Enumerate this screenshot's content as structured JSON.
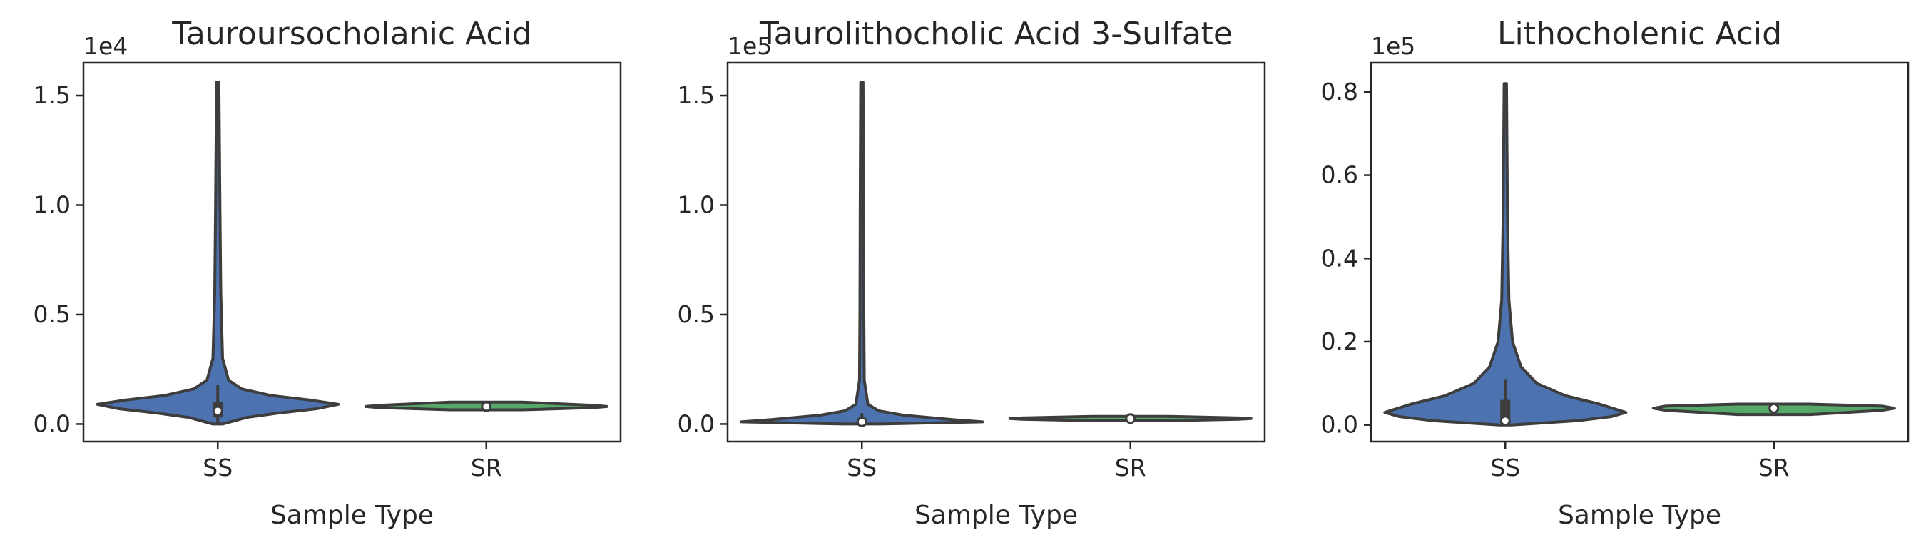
{
  "chart_data": [
    {
      "type": "violin",
      "title": "Tauroursocholanic Acid",
      "xlabel": "Sample Type",
      "ylabel": "",
      "categories": [
        "SS",
        "SR"
      ],
      "offset_label": "1e4",
      "ylim": [
        -0.08,
        1.65
      ],
      "yticks": [
        0.0,
        0.5,
        1.0,
        1.5
      ],
      "ytick_labels": [
        "0.0",
        "0.5",
        "1.0",
        "1.5"
      ],
      "violins": [
        {
          "category": "SS",
          "color": "#4c72b0",
          "median": 0.06,
          "q1": 0.03,
          "q3": 0.1,
          "whisker_low": 0.0,
          "whisker_high": 0.18,
          "profile": [
            [
              0.0,
              0.04
            ],
            [
              0.03,
              0.24
            ],
            [
              0.05,
              0.5
            ],
            [
              0.07,
              0.82
            ],
            [
              0.09,
              1.0
            ],
            [
              0.11,
              0.76
            ],
            [
              0.13,
              0.44
            ],
            [
              0.16,
              0.2
            ],
            [
              0.2,
              0.09
            ],
            [
              0.3,
              0.04
            ],
            [
              0.6,
              0.025
            ],
            [
              1.0,
              0.018
            ],
            [
              1.56,
              0.01
            ]
          ]
        },
        {
          "category": "SR",
          "color": "#55a868",
          "median": 0.08,
          "q1": 0.07,
          "q3": 0.09,
          "whisker_low": 0.065,
          "whisker_high": 0.1,
          "profile": [
            [
              0.065,
              0.3
            ],
            [
              0.075,
              0.9
            ],
            [
              0.08,
              1.0
            ],
            [
              0.085,
              0.9
            ],
            [
              0.1,
              0.3
            ]
          ]
        }
      ]
    },
    {
      "type": "violin",
      "title": "Taurolithocholic Acid 3-Sulfate",
      "xlabel": "Sample Type",
      "ylabel": "",
      "categories": [
        "SS",
        "SR"
      ],
      "offset_label": "1e5",
      "ylim": [
        -0.08,
        1.65
      ],
      "yticks": [
        0.0,
        0.5,
        1.0,
        1.5
      ],
      "ytick_labels": [
        "0.0",
        "0.5",
        "1.0",
        "1.5"
      ],
      "violins": [
        {
          "category": "SS",
          "color": "#4c72b0",
          "median": 0.01,
          "q1": 0.005,
          "q3": 0.02,
          "whisker_low": 0.0,
          "whisker_high": 0.05,
          "profile": [
            [
              0.0,
              0.15
            ],
            [
              0.01,
              1.0
            ],
            [
              0.02,
              0.75
            ],
            [
              0.04,
              0.35
            ],
            [
              0.06,
              0.14
            ],
            [
              0.09,
              0.05
            ],
            [
              0.2,
              0.02
            ],
            [
              0.5,
              0.016
            ],
            [
              1.0,
              0.014
            ],
            [
              1.56,
              0.01
            ]
          ]
        },
        {
          "category": "SR",
          "color": "#55a868",
          "median": 0.025,
          "q1": 0.02,
          "q3": 0.03,
          "whisker_low": 0.015,
          "whisker_high": 0.035,
          "profile": [
            [
              0.015,
              0.3
            ],
            [
              0.022,
              0.9
            ],
            [
              0.025,
              1.0
            ],
            [
              0.028,
              0.9
            ],
            [
              0.035,
              0.3
            ]
          ]
        }
      ]
    },
    {
      "type": "violin",
      "title": "Lithocholenic Acid",
      "xlabel": "Sample Type",
      "ylabel": "",
      "categories": [
        "SS",
        "SR"
      ],
      "offset_label": "1e5",
      "ylim": [
        -0.04,
        0.87
      ],
      "yticks": [
        0.0,
        0.2,
        0.4,
        0.6,
        0.8
      ],
      "ytick_labels": [
        "0.0",
        "0.2",
        "0.4",
        "0.6",
        "0.8"
      ],
      "violins": [
        {
          "category": "SS",
          "color": "#4c72b0",
          "median": 0.01,
          "q1": 0.005,
          "q3": 0.06,
          "whisker_low": 0.0,
          "whisker_high": 0.11,
          "profile": [
            [
              0.0,
              0.05
            ],
            [
              0.01,
              0.6
            ],
            [
              0.02,
              0.88
            ],
            [
              0.03,
              1.0
            ],
            [
              0.05,
              0.78
            ],
            [
              0.07,
              0.5
            ],
            [
              0.1,
              0.26
            ],
            [
              0.14,
              0.13
            ],
            [
              0.2,
              0.06
            ],
            [
              0.3,
              0.03
            ],
            [
              0.5,
              0.018
            ],
            [
              0.82,
              0.01
            ]
          ]
        },
        {
          "category": "SR",
          "color": "#55a868",
          "median": 0.04,
          "q1": 0.035,
          "q3": 0.045,
          "whisker_low": 0.025,
          "whisker_high": 0.05,
          "profile": [
            [
              0.025,
              0.3
            ],
            [
              0.035,
              0.9
            ],
            [
              0.04,
              1.0
            ],
            [
              0.045,
              0.9
            ],
            [
              0.05,
              0.3
            ]
          ]
        }
      ]
    }
  ]
}
